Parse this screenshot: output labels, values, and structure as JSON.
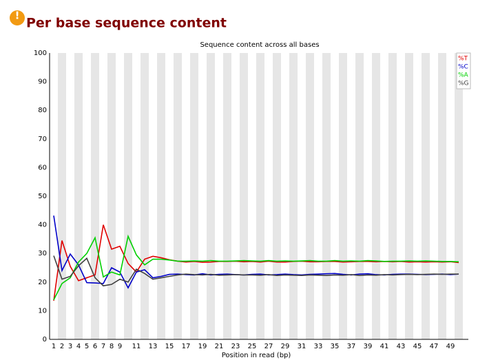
{
  "header": {
    "title": "Per base sequence content"
  },
  "chart_data": {
    "type": "line",
    "title": "Sequence content across all bases",
    "x_label": "Position in read (bp)",
    "categories": [
      "1",
      "2",
      "3",
      "4",
      "5",
      "6",
      "7",
      "8",
      "9",
      null,
      "11",
      null,
      "13",
      null,
      "15",
      null,
      "17",
      null,
      "19",
      null,
      "21",
      null,
      "23",
      null,
      "25",
      null,
      "27",
      null,
      "29",
      null,
      "31",
      null,
      "33",
      null,
      "35",
      null,
      "37",
      null,
      "39",
      null,
      "41",
      null,
      "43",
      null,
      "45",
      null,
      "47",
      null,
      "49",
      null
    ],
    "series": [
      {
        "name": "%T",
        "color": "#e00000",
        "values": [
          13.5,
          34.5,
          25.5,
          20.5,
          21.5,
          22.5,
          40,
          31.5,
          32.5,
          26.5,
          23.5,
          28,
          29,
          28.5,
          27.8,
          27.3,
          27,
          27.2,
          26.9,
          27,
          27.2,
          27.2,
          27.3,
          27.1,
          27.2,
          27,
          27.3,
          27,
          27,
          27.2,
          27.3,
          27.1,
          27.1,
          27.2,
          27.2,
          27,
          27.1,
          27.2,
          27.2,
          27.1,
          27.2,
          27.1,
          27.2,
          27,
          27.1,
          27,
          27.1,
          27,
          27.1,
          26.8
        ]
      },
      {
        "name": "%C",
        "color": "#0000c8",
        "values": [
          43.2,
          24,
          29.8,
          26,
          19.8,
          19.7,
          19.5,
          25,
          23.5,
          18,
          23.5,
          24.3,
          21.5,
          22,
          22.7,
          22.8,
          22.6,
          22.5,
          22.9,
          22.5,
          22.7,
          22.8,
          22.6,
          22.5,
          22.7,
          22.8,
          22.5,
          22.6,
          22.8,
          22.6,
          22.5,
          22.7,
          22.8,
          22.9,
          23,
          22.7,
          22.5,
          22.8,
          22.9,
          22.6,
          22.5,
          22.7,
          22.8,
          22.8,
          22.7,
          22.6,
          22.7,
          22.8,
          22.6,
          22.8
        ]
      },
      {
        "name": "%A",
        "color": "#00d000",
        "values": [
          13.8,
          19.5,
          21.5,
          27,
          30,
          35.5,
          21.8,
          23.5,
          22.5,
          36,
          29.5,
          26,
          28,
          28,
          27.7,
          27.3,
          27.3,
          27.4,
          27.3,
          27.5,
          27.3,
          27.3,
          27.4,
          27.5,
          27.4,
          27.3,
          27.5,
          27.3,
          27.4,
          27.3,
          27.4,
          27.5,
          27.3,
          27.3,
          27.5,
          27.3,
          27.4,
          27.3,
          27.5,
          27.4,
          27.2,
          27.3,
          27.3,
          27.4,
          27.3,
          27.4,
          27.3,
          27.2,
          27.2,
          27.1
        ]
      },
      {
        "name": "%G",
        "color": "#404040",
        "values": [
          29.2,
          21,
          22,
          25.7,
          28.3,
          21.5,
          18.7,
          19.2,
          21,
          20,
          24.5,
          23,
          21,
          21.5,
          22,
          22.5,
          22.8,
          22.6,
          22.5,
          22.7,
          22.4,
          22.5,
          22.6,
          22.5,
          22.5,
          22.4,
          22.6,
          22.3,
          22.5,
          22.4,
          22.3,
          22.5,
          22.4,
          22.3,
          22.5,
          22.4,
          22.6,
          22.3,
          22.5,
          22.4,
          22.6,
          22.5,
          22.6,
          22.7,
          22.6,
          22.7,
          22.8,
          22.7,
          22.8,
          22.8
        ]
      }
    ],
    "ylim": [
      0,
      100
    ],
    "yticks": [
      0,
      10,
      20,
      30,
      40,
      50,
      60,
      70,
      80,
      90,
      100
    ],
    "legend": "top-right"
  }
}
